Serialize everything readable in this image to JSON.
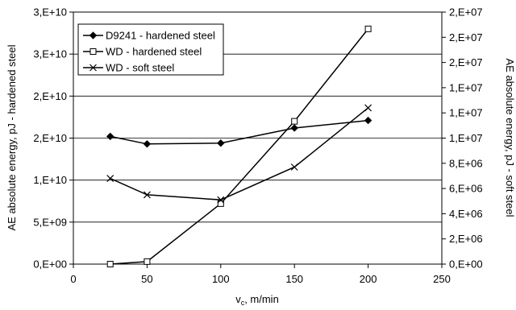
{
  "chart_data": {
    "type": "line",
    "xlabel": "v",
    "xlabel_sub": "c",
    "xlabel_suffix": ", m/min",
    "ylabel_left": "AE absolute energy, pJ - hardened steel",
    "ylabel_right": "AE absolute energy,  pJ - soft steel",
    "xlim": [
      0,
      250
    ],
    "ylim_left": [
      0,
      30000000000
    ],
    "ylim_right": [
      0,
      20000000
    ],
    "x_ticks": [
      0,
      50,
      100,
      150,
      200,
      250
    ],
    "x_tick_labels": [
      "0",
      "50",
      "100",
      "150",
      "200",
      "250"
    ],
    "y_left_ticks": [
      0,
      5000000000,
      10000000000,
      15000000000,
      20000000000,
      25000000000,
      30000000000
    ],
    "y_left_tick_labels": [
      "0,E+00",
      "5,E+09",
      "1,E+10",
      "2,E+10",
      "2,E+10",
      "3,E+10",
      "3,E+10"
    ],
    "y_right_ticks": [
      0,
      2000000,
      4000000,
      6000000,
      8000000,
      10000000,
      12000000,
      14000000,
      16000000,
      18000000,
      20000000
    ],
    "y_right_tick_labels": [
      "0,E+00",
      "2,E+06",
      "4,E+06",
      "6,E+06",
      "8,E+06",
      "1,E+07",
      "1,E+07",
      "1,E+07",
      "2,E+07",
      "2,E+07",
      "2,E+07"
    ],
    "grid": "horizontal",
    "legend_position": "top-left",
    "series": [
      {
        "name": "D9241 - hardened steel",
        "axis": "left",
        "marker": "diamond",
        "x": [
          25,
          50,
          100,
          150,
          200
        ],
        "y": [
          15200000000,
          14300000000,
          14400000000,
          16200000000,
          17100000000
        ]
      },
      {
        "name": "WD - hardened steel",
        "axis": "left",
        "marker": "square",
        "x": [
          25,
          50,
          100,
          150,
          200
        ],
        "y": [
          0,
          300000000,
          7200000000,
          17000000000,
          28000000000
        ]
      },
      {
        "name": "WD - soft steel",
        "axis": "right",
        "marker": "cross",
        "x": [
          25,
          50,
          100,
          150,
          200
        ],
        "y": [
          6800000,
          5500000,
          5100000,
          7700000,
          12400000
        ]
      }
    ]
  }
}
